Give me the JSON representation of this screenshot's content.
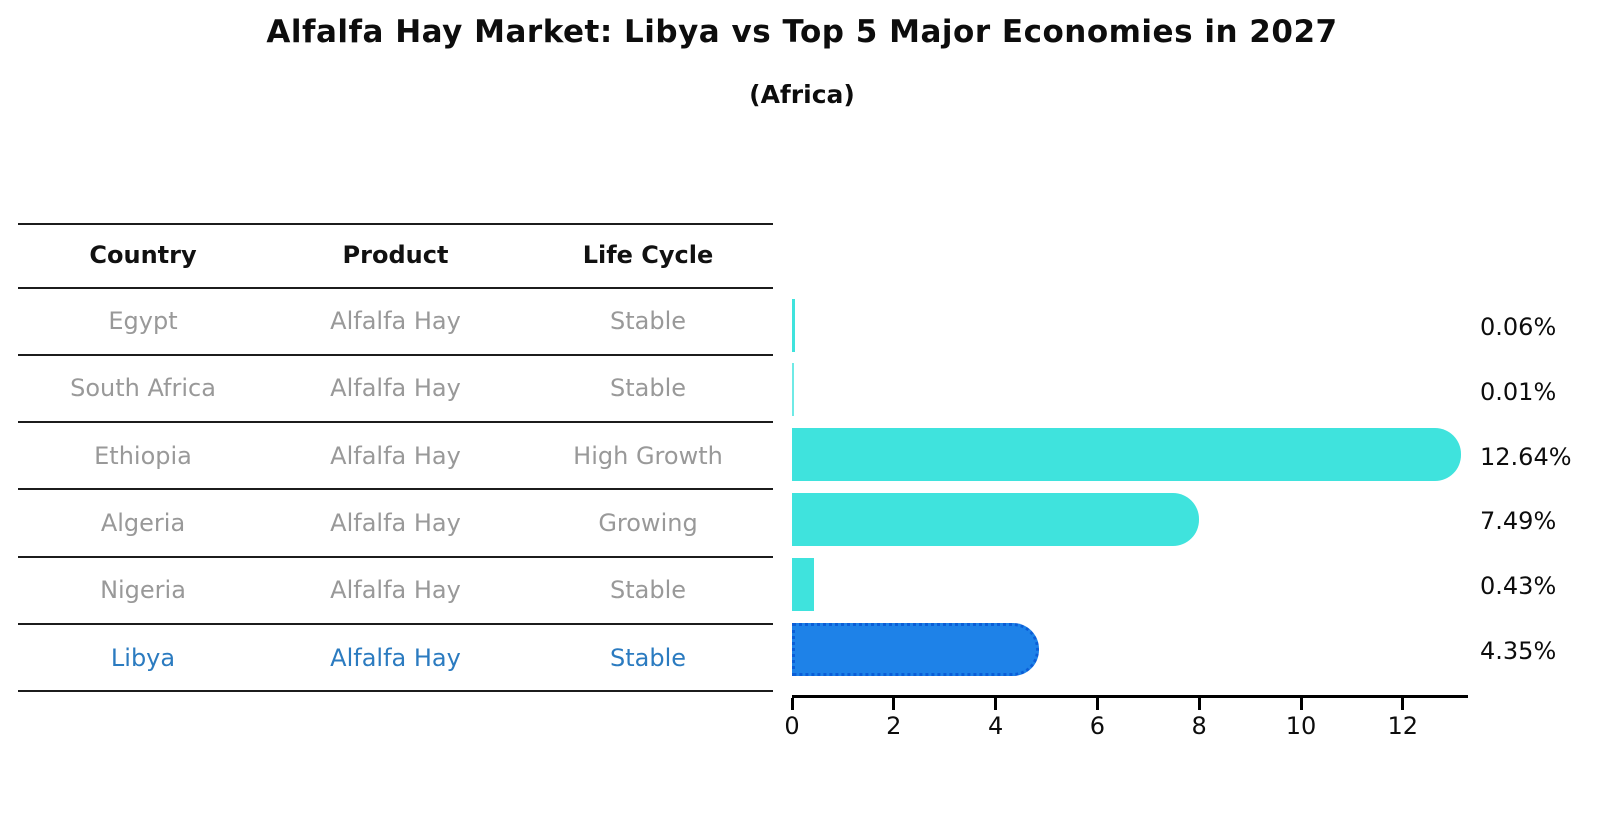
{
  "title": "Alfalfa Hay Market: Libya vs Top 5 Major Economies in 2027",
  "subtitle": "(Africa)",
  "table": {
    "headers": [
      "Country",
      "Product",
      "Life Cycle"
    ],
    "rows": [
      {
        "country": "Egypt",
        "product": "Alfalfa Hay",
        "life_cycle": "Stable",
        "highlighted": false
      },
      {
        "country": "South Africa",
        "product": "Alfalfa Hay",
        "life_cycle": "Stable",
        "highlighted": false
      },
      {
        "country": "Ethiopia",
        "product": "Alfalfa Hay",
        "life_cycle": "High Growth",
        "highlighted": false
      },
      {
        "country": "Algeria",
        "product": "Alfalfa Hay",
        "life_cycle": "Growing",
        "highlighted": false
      },
      {
        "country": "Nigeria",
        "product": "Alfalfa Hay",
        "life_cycle": "Stable",
        "highlighted": false
      },
      {
        "country": "Libya",
        "product": "Alfalfa Hay",
        "life_cycle": "Stable",
        "highlighted": true
      }
    ]
  },
  "chart_data": {
    "type": "bar",
    "orientation": "horizontal",
    "title": "Alfalfa Hay Market: Libya vs Top 5 Major Economies in 2027",
    "subtitle": "(Africa)",
    "categories": [
      "Egypt",
      "South Africa",
      "Ethiopia",
      "Algeria",
      "Nigeria",
      "Libya"
    ],
    "values": [
      0.06,
      0.01,
      12.64,
      7.49,
      0.43,
      4.35
    ],
    "value_labels": [
      "0.06%",
      "0.01%",
      "12.64%",
      "7.49%",
      "0.43%",
      "4.35%"
    ],
    "unit": "%",
    "x_ticks": [
      0,
      2,
      4,
      6,
      8,
      10,
      12
    ],
    "xlim": [
      0,
      13.3
    ],
    "grid": false,
    "legend": "none",
    "highlight_index": 5,
    "colors": {
      "bar": "#3fe3dd",
      "highlight_bar": "#1e82e8",
      "highlight_border": "#0b5ed7",
      "highlight_text": "#2b7bc0",
      "row_text": "#999999",
      "header_text": "#111111",
      "axis": "#000000"
    }
  }
}
